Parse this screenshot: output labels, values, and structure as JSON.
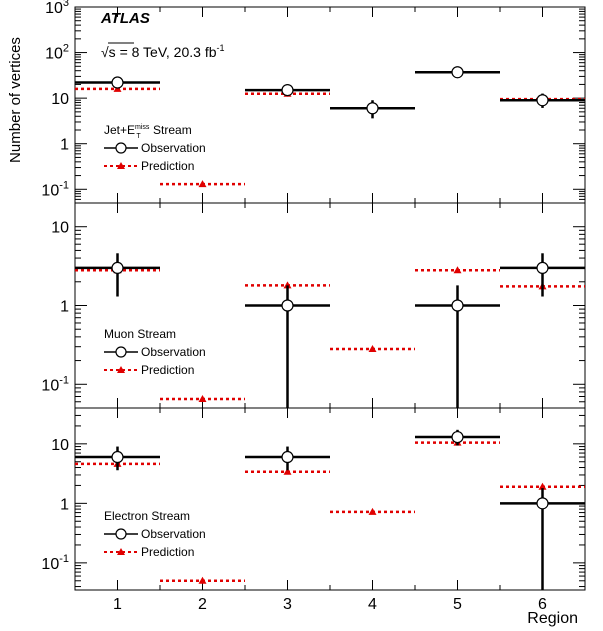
{
  "atlas_label": "ATLAS",
  "energy_label": "√s = 8 TeV, 20.3 fb",
  "lumi_superscript": "-1",
  "colors": {
    "observation": "#000000",
    "prediction": "#e00000",
    "frame": "#000000"
  },
  "chart_data": [
    {
      "type": "scatter",
      "panel": "top",
      "stream_label": "Jet+E",
      "stream_label_sub": "T",
      "stream_label_sup": "miss",
      "stream_label_tail": " Stream",
      "ylabel": "Number of vertices",
      "yscale": "log",
      "ylim": [
        0.05,
        1000
      ],
      "yticks": [
        {
          "v": 0.1,
          "m": "10",
          "e": "-1"
        },
        {
          "v": 1,
          "m": "1",
          "e": ""
        },
        {
          "v": 10,
          "m": "10",
          "e": ""
        },
        {
          "v": 100,
          "m": "10",
          "e": "2"
        },
        {
          "v": 1000,
          "m": "10",
          "e": "3"
        }
      ],
      "legend": {
        "observation": "Observation",
        "prediction": "Prediction"
      },
      "legend_placement": "middle-left",
      "observation": [
        {
          "region": 1,
          "value": 22,
          "err_lo": 4.5,
          "err_hi": 5.2
        },
        {
          "region": 3,
          "value": 15,
          "err_lo": 3.8,
          "err_hi": 4.4
        },
        {
          "region": 4,
          "value": 6,
          "err_lo": 2.4,
          "err_hi": 3.0
        },
        {
          "region": 5,
          "value": 37,
          "err_lo": 6.0,
          "err_hi": 6.5
        },
        {
          "region": 6,
          "value": 9,
          "err_lo": 2.9,
          "err_hi": 3.6
        }
      ],
      "prediction": [
        {
          "region": 1,
          "value": 16
        },
        {
          "region": 2,
          "value": 0.13
        },
        {
          "region": 3,
          "value": 12.5
        },
        {
          "region": 4,
          "value": 6
        },
        {
          "region": 5,
          "value": 37
        },
        {
          "region": 6,
          "value": 9.5
        }
      ]
    },
    {
      "type": "scatter",
      "panel": "middle",
      "stream_label": "Muon Stream",
      "yscale": "log",
      "ylim": [
        0.05,
        20
      ],
      "yticks": [
        {
          "v": 0.1,
          "m": "10",
          "e": "-1"
        },
        {
          "v": 1,
          "m": "1",
          "e": ""
        },
        {
          "v": 10,
          "m": "10",
          "e": ""
        }
      ],
      "legend": {
        "observation": "Observation",
        "prediction": "Prediction"
      },
      "legend_placement": "middle-left",
      "observation": [
        {
          "region": 1,
          "value": 3,
          "err_lo": 1.7,
          "err_hi": 1.6
        },
        {
          "region": 3,
          "value": 1,
          "err_lo": 0.95,
          "err_hi": 0.8
        },
        {
          "region": 5,
          "value": 1,
          "err_lo": 0.95,
          "err_hi": 0.8
        },
        {
          "region": 6,
          "value": 3,
          "err_lo": 1.7,
          "err_hi": 1.6
        }
      ],
      "prediction": [
        {
          "region": 1,
          "value": 2.8
        },
        {
          "region": 2,
          "value": 0.065
        },
        {
          "region": 3,
          "value": 1.8
        },
        {
          "region": 4,
          "value": 0.28
        },
        {
          "region": 5,
          "value": 2.8
        },
        {
          "region": 6,
          "value": 1.75
        }
      ]
    },
    {
      "type": "scatter",
      "panel": "bottom",
      "stream_label": "Electron Stream",
      "yscale": "log",
      "ylim": [
        0.035,
        40
      ],
      "yticks": [
        {
          "v": 0.1,
          "m": "10",
          "e": "-1"
        },
        {
          "v": 1,
          "m": "1",
          "e": ""
        },
        {
          "v": 10,
          "m": "10",
          "e": ""
        }
      ],
      "xlabel": "Region",
      "xticks": [
        "1",
        "2",
        "3",
        "4",
        "5",
        "6"
      ],
      "legend": {
        "observation": "Observation",
        "prediction": "Prediction"
      },
      "legend_placement": "middle-left",
      "observation": [
        {
          "region": 1,
          "value": 6,
          "err_lo": 2.4,
          "err_hi": 3.0
        },
        {
          "region": 3,
          "value": 6,
          "err_lo": 2.4,
          "err_hi": 3.0
        },
        {
          "region": 5,
          "value": 13,
          "err_lo": 3.6,
          "err_hi": 4.2
        },
        {
          "region": 6,
          "value": 1,
          "err_lo": 0.97,
          "err_hi": 0.8
        }
      ],
      "prediction": [
        {
          "region": 1,
          "value": 4.6
        },
        {
          "region": 2,
          "value": 0.05
        },
        {
          "region": 3,
          "value": 3.4
        },
        {
          "region": 4,
          "value": 0.72
        },
        {
          "region": 5,
          "value": 10.5
        },
        {
          "region": 6,
          "value": 1.9
        }
      ]
    }
  ]
}
